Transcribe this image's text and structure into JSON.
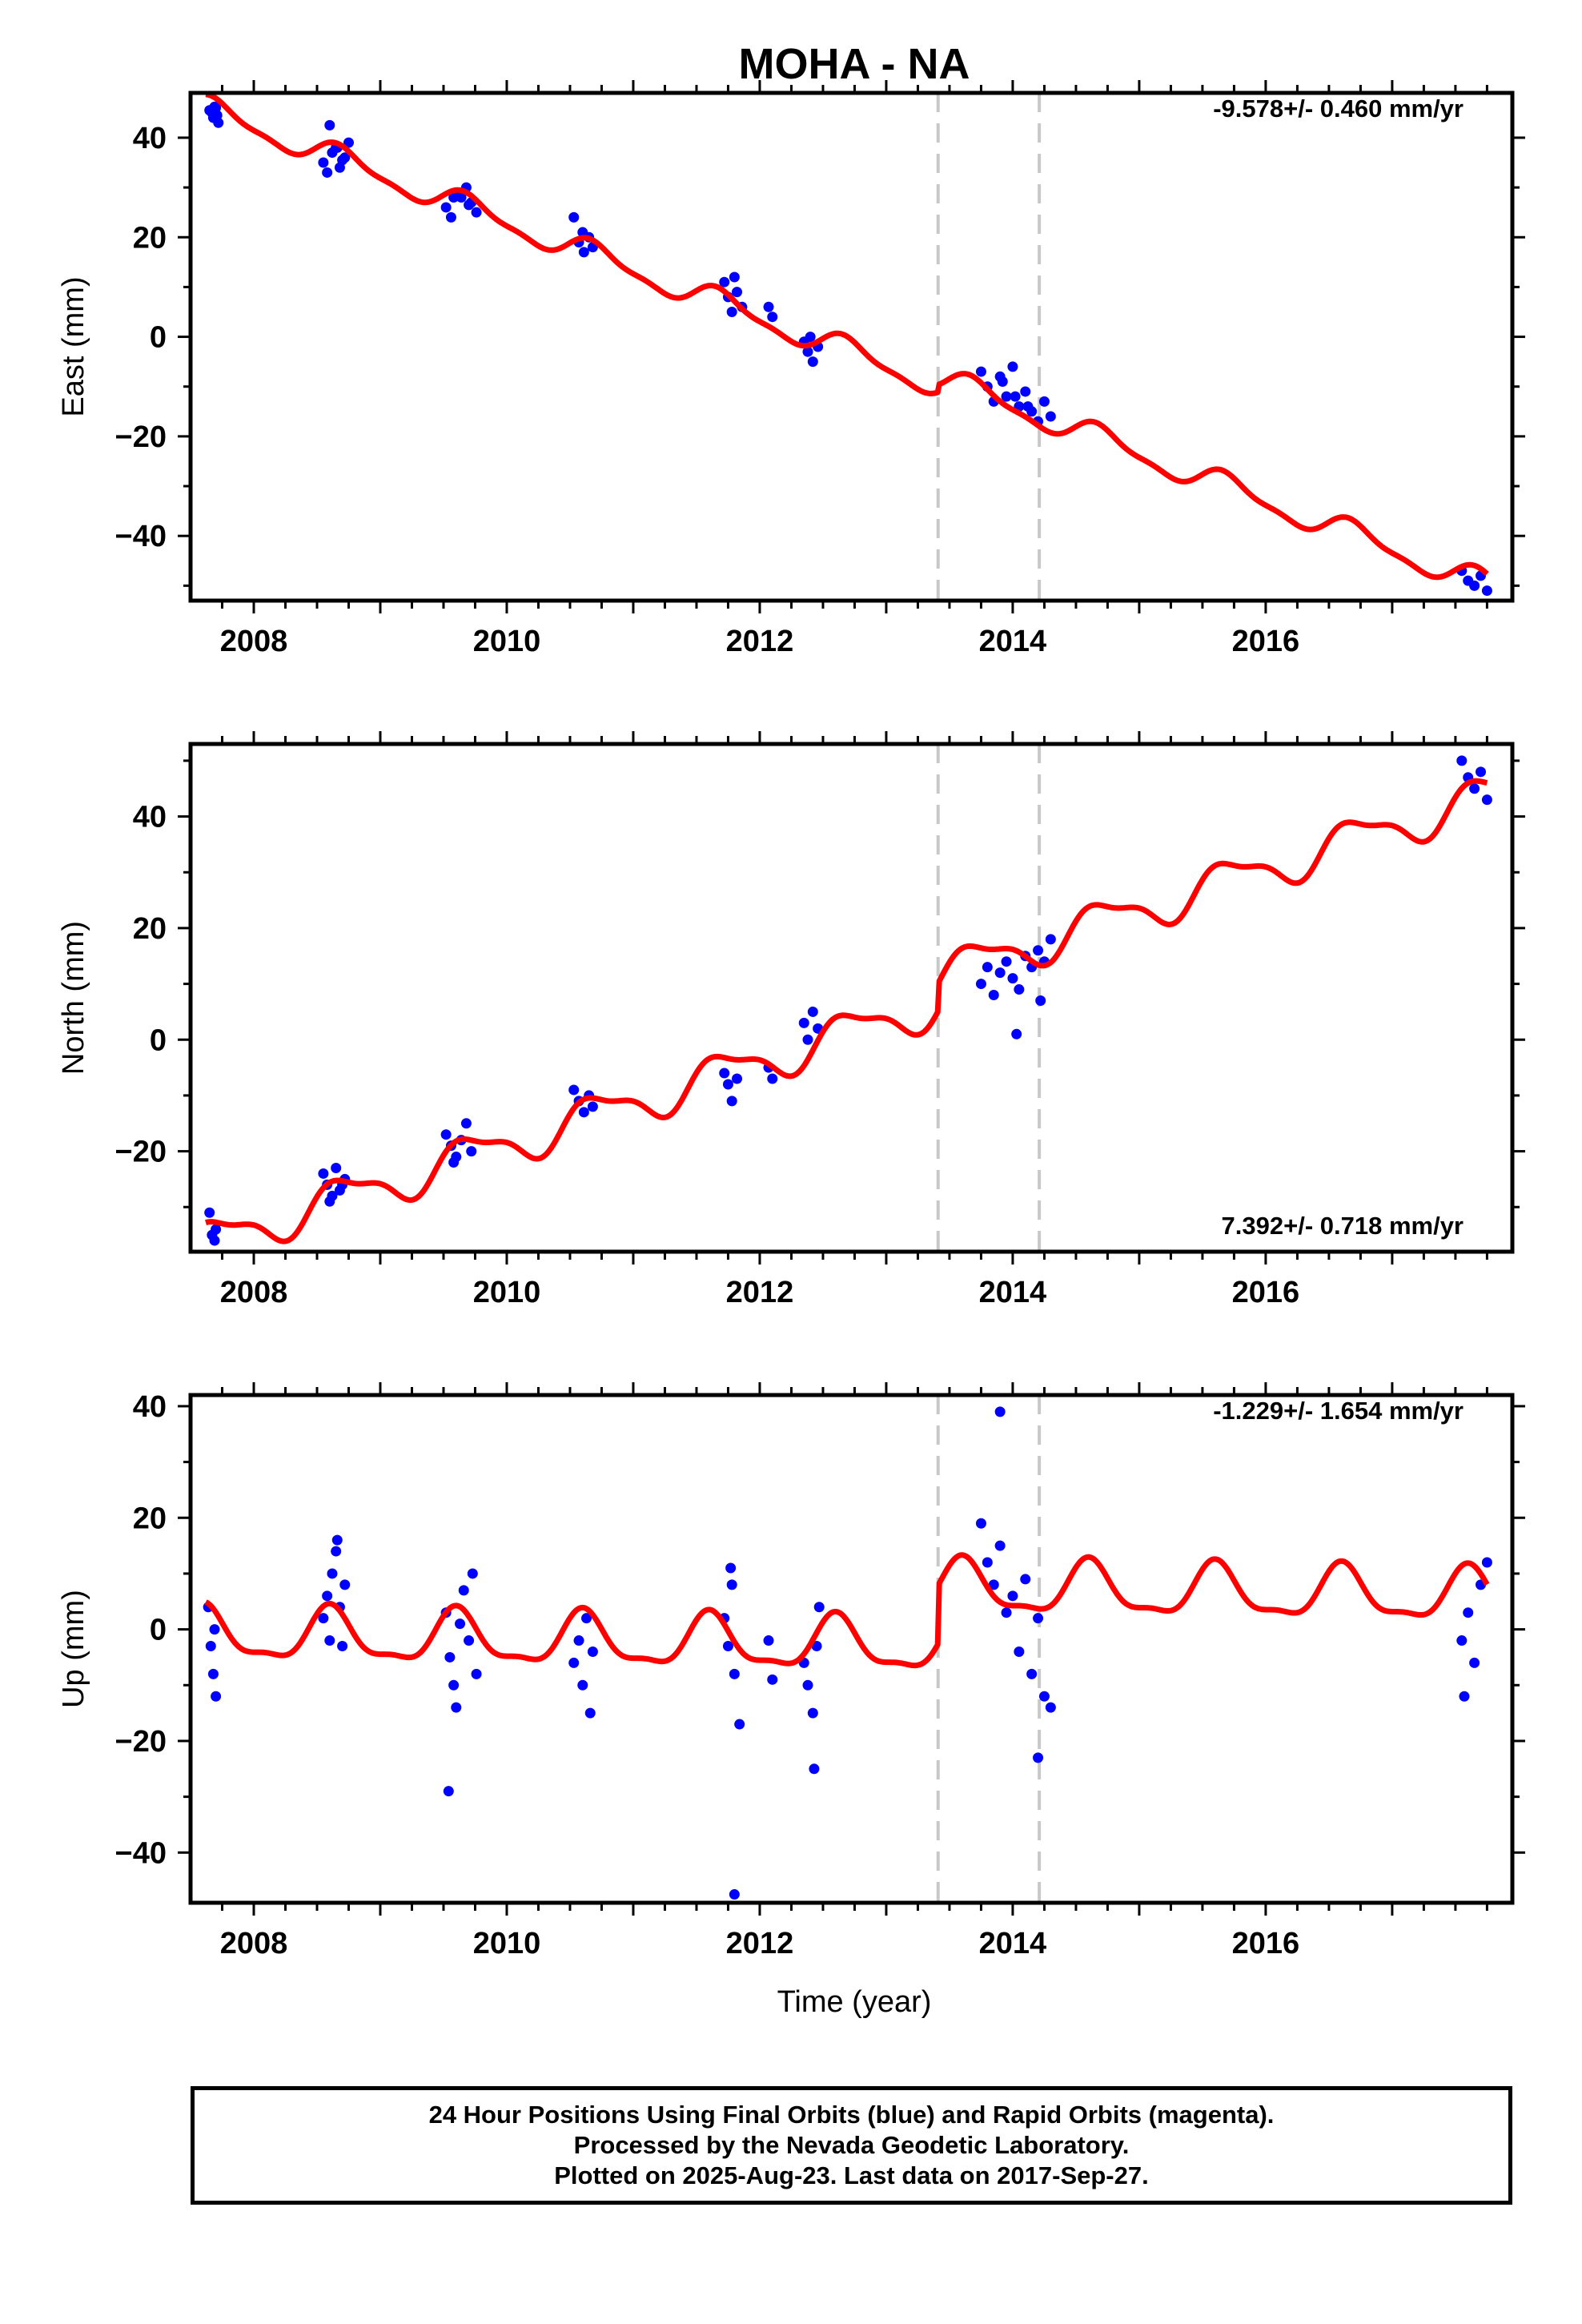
{
  "title": "MOHA - NA",
  "xlabel": "Time (year)",
  "footer": {
    "line1": "24 Hour Positions Using Final Orbits (blue) and Rapid Orbits (magenta).",
    "line2": "Processed by the Nevada Geodetic Laboratory.",
    "line3": "Plotted on 2025-Aug-23. Last data on 2017-Sep-27."
  },
  "colors": {
    "data": "#0000ff",
    "model": "#ff0000",
    "event_line": "#c8c8c8",
    "frame": "#000000"
  },
  "chart_data": [
    {
      "type": "scatter",
      "ylabel": "East (mm)",
      "rate_label": "-9.578+/- 0.460 mm/yr",
      "xlim": [
        2007.5,
        2017.95
      ],
      "ylim": [
        -53,
        49
      ],
      "xticks": [
        2008,
        2010,
        2012,
        2014,
        2016
      ],
      "yticks": [
        -40,
        -20,
        0,
        20,
        40
      ],
      "event_lines": [
        2013.41,
        2014.21
      ],
      "series": [
        {
          "x": [
            2007.65,
            2007.68,
            2007.7,
            2007.72,
            2007.67,
            2007.71,
            2007.69,
            2008.55,
            2008.58,
            2008.62,
            2008.65,
            2008.68,
            2008.72,
            2008.75,
            2008.6,
            2008.7,
            2008.66,
            2009.52,
            2009.56,
            2009.6,
            2009.64,
            2009.68,
            2009.72,
            2009.76,
            2009.58,
            2009.7,
            2010.53,
            2010.57,
            2010.61,
            2010.65,
            2010.68,
            2010.6,
            2011.72,
            2011.75,
            2011.78,
            2011.82,
            2011.86,
            2011.8,
            2012.07,
            2012.1,
            2012.35,
            2012.38,
            2012.42,
            2012.46,
            2012.4,
            2013.75,
            2013.8,
            2013.85,
            2013.9,
            2013.95,
            2014.0,
            2014.05,
            2014.1,
            2014.15,
            2014.2,
            2014.25,
            2014.3,
            2013.92,
            2014.02,
            2014.12,
            2017.55,
            2017.6,
            2017.65,
            2017.7,
            2017.75
          ],
          "y": [
            45.5,
            44,
            46,
            43,
            45,
            44.5,
            46.2,
            35,
            33,
            37,
            38,
            34,
            36,
            39,
            42.5,
            35.5,
            38,
            26,
            24,
            29,
            28,
            30,
            27,
            25,
            28,
            26.5,
            24,
            19,
            17,
            20,
            18,
            21,
            11,
            8,
            5,
            9,
            6,
            12,
            6,
            4,
            -1,
            -3,
            -5,
            -2,
            0,
            -7,
            -10,
            -13,
            -8,
            -12,
            -6,
            -14,
            -11,
            -15,
            -17,
            -13,
            -16,
            -9,
            -12,
            -14,
            -47,
            -49,
            -50,
            -48,
            -51
          ]
        }
      ]
    },
    {
      "type": "scatter",
      "ylabel": "North (mm)",
      "rate_label": "7.392+/- 0.718 mm/yr",
      "xlim": [
        2007.5,
        2017.95
      ],
      "ylim": [
        -38,
        53
      ],
      "xticks": [
        2008,
        2010,
        2012,
        2014,
        2016
      ],
      "yticks": [
        -20,
        0,
        20,
        40
      ],
      "event_lines": [
        2013.41,
        2014.21
      ],
      "series": [
        {
          "x": [
            2007.65,
            2007.67,
            2007.69,
            2007.7,
            2008.55,
            2008.58,
            2008.62,
            2008.65,
            2008.68,
            2008.72,
            2008.6,
            2008.7,
            2009.52,
            2009.56,
            2009.6,
            2009.64,
            2009.68,
            2009.72,
            2009.58,
            2010.53,
            2010.57,
            2010.61,
            2010.65,
            2010.68,
            2011.72,
            2011.75,
            2011.78,
            2011.82,
            2012.07,
            2012.1,
            2012.35,
            2012.38,
            2012.42,
            2012.46,
            2013.75,
            2013.8,
            2013.85,
            2013.9,
            2013.95,
            2014.0,
            2014.05,
            2014.1,
            2014.15,
            2014.2,
            2014.25,
            2014.3,
            2014.03,
            2014.22,
            2017.55,
            2017.6,
            2017.65,
            2017.7,
            2017.75
          ],
          "y": [
            -31,
            -35,
            -36,
            -34,
            -24,
            -26,
            -28,
            -23,
            -27,
            -25,
            -29,
            -26,
            -17,
            -19,
            -21,
            -18,
            -15,
            -20,
            -22,
            -9,
            -11,
            -13,
            -10,
            -12,
            -6,
            -8,
            -11,
            -7,
            -5,
            -7,
            3,
            0,
            5,
            2,
            10,
            13,
            8,
            12,
            14,
            11,
            9,
            15,
            13,
            16,
            14,
            18,
            1,
            7,
            50,
            47,
            45,
            48,
            43
          ]
        }
      ]
    },
    {
      "type": "scatter",
      "ylabel": "Up (mm)",
      "rate_label": "-1.229+/- 1.654 mm/yr",
      "xlim": [
        2007.5,
        2017.95
      ],
      "ylim": [
        -49,
        42
      ],
      "xticks": [
        2008,
        2010,
        2012,
        2014,
        2016
      ],
      "yticks": [
        -40,
        -20,
        0,
        20,
        40
      ],
      "event_lines": [
        2013.41,
        2014.21
      ],
      "series": [
        {
          "x": [
            2007.64,
            2007.66,
            2007.68,
            2007.7,
            2007.69,
            2008.55,
            2008.58,
            2008.6,
            2008.62,
            2008.65,
            2008.68,
            2008.7,
            2008.72,
            2008.66,
            2009.52,
            2009.55,
            2009.58,
            2009.6,
            2009.63,
            2009.66,
            2009.7,
            2009.73,
            2009.76,
            2009.54,
            2010.53,
            2010.57,
            2010.6,
            2010.63,
            2010.66,
            2010.68,
            2011.72,
            2011.75,
            2011.78,
            2011.8,
            2011.84,
            2011.77,
            2012.07,
            2012.1,
            2012.35,
            2012.38,
            2012.42,
            2012.45,
            2012.47,
            2012.43,
            2013.75,
            2013.8,
            2013.85,
            2013.9,
            2013.95,
            2014.0,
            2014.05,
            2014.1,
            2014.15,
            2014.2,
            2014.25,
            2014.3,
            2013.9,
            2014.2,
            2017.55,
            2017.6,
            2017.65,
            2017.7,
            2017.75,
            2017.57
          ],
          "y": [
            4,
            -3,
            -8,
            -12,
            0,
            2,
            6,
            -2,
            10,
            14,
            4,
            -3,
            8,
            16,
            3,
            -5,
            -10,
            -14,
            1,
            7,
            -2,
            10,
            -8,
            -29,
            -6,
            -2,
            -10,
            2,
            -15,
            -4,
            2,
            -3,
            8,
            -8,
            -17,
            11,
            -2,
            -9,
            -6,
            -10,
            -15,
            -3,
            4,
            -25,
            19,
            12,
            8,
            15,
            3,
            6,
            -4,
            9,
            -8,
            2,
            -12,
            -14,
            39,
            -23,
            -2,
            3,
            -6,
            8,
            12,
            -12
          ]
        },
        {
          "x": [
            2011.8
          ],
          "y": [
            -47.5
          ]
        }
      ]
    }
  ]
}
